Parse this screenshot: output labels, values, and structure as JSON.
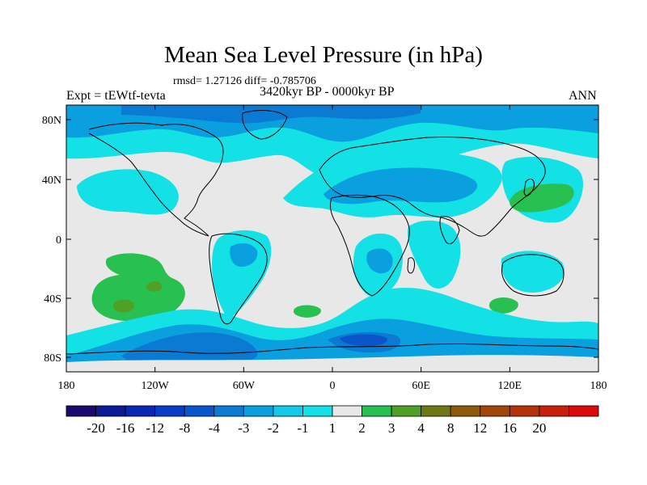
{
  "title": "Mean Sea Level Pressure (in hPa)",
  "stats_line": "rmsd= 1.27126 diff= -0.785706",
  "experiment": "Expt = tEWtf-tevta",
  "period": "3420kyr BP - 0000kyr BP",
  "season": "ANN",
  "lat_ticks": [
    "80N",
    "40N",
    "0",
    "40S",
    "80S"
  ],
  "lon_ticks": [
    "180",
    "120W",
    "60W",
    "0",
    "60E",
    "120E",
    "180"
  ],
  "colorbar": {
    "labels": [
      "-20",
      "-16",
      "-12",
      "-8",
      "-4",
      "-3",
      "-2",
      "-1",
      "1",
      "2",
      "3",
      "4",
      "8",
      "12",
      "16",
      "20"
    ],
    "colors": [
      "#1a0a6e",
      "#0c1a96",
      "#0a28b4",
      "#0a3cc8",
      "#0a55cc",
      "#0a7ad2",
      "#0aa0e0",
      "#14c8e8",
      "#14e1e6",
      "#e8e8e8",
      "#28c050",
      "#50a028",
      "#6e7814",
      "#8c5a0a",
      "#a0460a",
      "#b4320a",
      "#c81e0a",
      "#dc0a0a"
    ]
  },
  "palette": {
    "neutral": "#e8e8e8",
    "light_cyan": "#14e1e6",
    "mid_cyan": "#14c8e8",
    "blue": "#0aa0e0",
    "deep_blue": "#0a7ad2",
    "darker_blue": "#0a55cc",
    "green": "#28c050",
    "olive": "#50a028"
  }
}
